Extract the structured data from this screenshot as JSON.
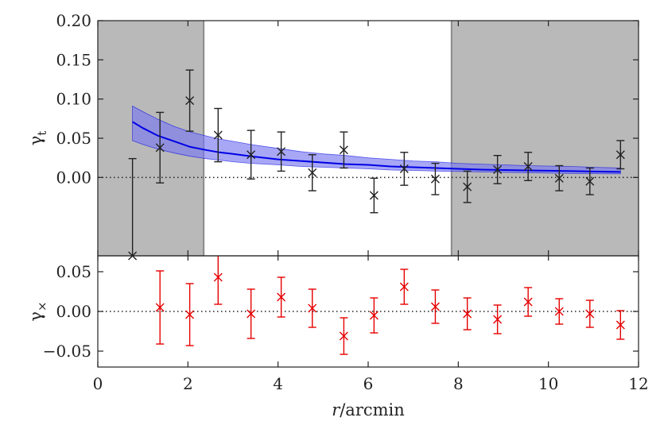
{
  "chart_data": [
    {
      "type": "line",
      "panel": "top",
      "ylabel": "γ",
      "ylabel_sub": "t",
      "xlim": [
        0,
        12
      ],
      "ylim": [
        -0.1,
        0.2
      ],
      "yticks": [
        0.0,
        0.05,
        0.1,
        0.15,
        0.2
      ],
      "ytick_labels": [
        "0.00",
        "0.05",
        "0.10",
        "0.15",
        "0.20"
      ],
      "shaded_regions": [
        {
          "x0": 0.0,
          "x1": 2.35
        },
        {
          "x0": 7.85,
          "x1": 12.0
        }
      ],
      "reference_line_y": 0.0,
      "model": {
        "x": [
          0.77,
          1.0,
          1.34,
          1.7,
          2.05,
          2.4,
          2.7,
          3.0,
          3.4,
          4.0,
          4.5,
          5.0,
          5.5,
          6.0,
          6.5,
          7.0,
          7.5,
          8.0,
          8.5,
          9.0,
          9.5,
          10.0,
          10.5,
          11.0,
          11.6
        ],
        "y": [
          0.071,
          0.063,
          0.053,
          0.046,
          0.039,
          0.035,
          0.032,
          0.03,
          0.027,
          0.023,
          0.021,
          0.019,
          0.017,
          0.016,
          0.014,
          0.013,
          0.012,
          0.011,
          0.01,
          0.0095,
          0.009,
          0.0085,
          0.008,
          0.0075,
          0.007
        ],
        "lower": [
          0.047,
          0.042,
          0.036,
          0.031,
          0.027,
          0.024,
          0.022,
          0.02,
          0.018,
          0.016,
          0.014,
          0.013,
          0.012,
          0.011,
          0.0095,
          0.009,
          0.008,
          0.0075,
          0.007,
          0.0065,
          0.006,
          0.0055,
          0.005,
          0.0048,
          0.0045
        ],
        "upper": [
          0.091,
          0.084,
          0.074,
          0.065,
          0.058,
          0.053,
          0.049,
          0.046,
          0.042,
          0.037,
          0.033,
          0.03,
          0.028,
          0.025,
          0.023,
          0.021,
          0.02,
          0.018,
          0.017,
          0.016,
          0.015,
          0.0145,
          0.014,
          0.013,
          0.012
        ]
      },
      "points": {
        "x": [
          0.77,
          1.38,
          2.04,
          2.67,
          3.4,
          4.07,
          4.76,
          5.46,
          6.13,
          6.8,
          7.49,
          8.2,
          8.87,
          9.55,
          10.24,
          10.92,
          11.6
        ],
        "y": [
          -0.1,
          0.038,
          0.098,
          0.054,
          0.029,
          0.033,
          0.006,
          0.035,
          -0.023,
          0.011,
          -0.002,
          -0.012,
          0.01,
          0.014,
          -0.001,
          -0.005,
          0.029
        ],
        "err": [
          0.124,
          0.045,
          0.039,
          0.034,
          0.031,
          0.025,
          0.023,
          0.023,
          0.022,
          0.021,
          0.02,
          0.02,
          0.018,
          0.018,
          0.016,
          0.017,
          0.018
        ]
      }
    },
    {
      "type": "scatter",
      "panel": "bottom",
      "xlabel_var": "r",
      "xlabel_unit": "/arcmin",
      "ylabel": "γ",
      "ylabel_sub": "×",
      "xlim": [
        0,
        12
      ],
      "ylim": [
        -0.07,
        0.07
      ],
      "xticks": [
        0,
        2,
        4,
        6,
        8,
        10,
        12
      ],
      "xtick_labels": [
        "0",
        "2",
        "4",
        "6",
        "8",
        "10",
        "12"
      ],
      "yticks": [
        -0.05,
        0.0,
        0.05
      ],
      "ytick_labels": [
        "−0.05",
        "0.00",
        "0.05"
      ],
      "reference_line_y": 0.0,
      "points": {
        "x": [
          1.38,
          2.04,
          2.67,
          3.4,
          4.07,
          4.76,
          5.46,
          6.13,
          6.8,
          7.49,
          8.2,
          8.87,
          9.55,
          10.24,
          10.92,
          11.6
        ],
        "y": [
          0.005,
          -0.004,
          0.043,
          -0.003,
          0.018,
          0.004,
          -0.031,
          -0.005,
          0.031,
          0.006,
          -0.003,
          -0.01,
          0.012,
          0.0,
          -0.003,
          -0.017
        ],
        "err": [
          0.046,
          0.039,
          0.034,
          0.031,
          0.025,
          0.024,
          0.023,
          0.022,
          0.022,
          0.021,
          0.02,
          0.018,
          0.018,
          0.016,
          0.017,
          0.018
        ]
      }
    }
  ],
  "colors": {
    "shade": "#b9b9b9",
    "shade_edge": "#8a8a8a",
    "model_line": "#0000e6",
    "model_band": "#7878f0",
    "points_top": "#222222",
    "points_bottom": "#e60000",
    "axis": "#222222"
  }
}
